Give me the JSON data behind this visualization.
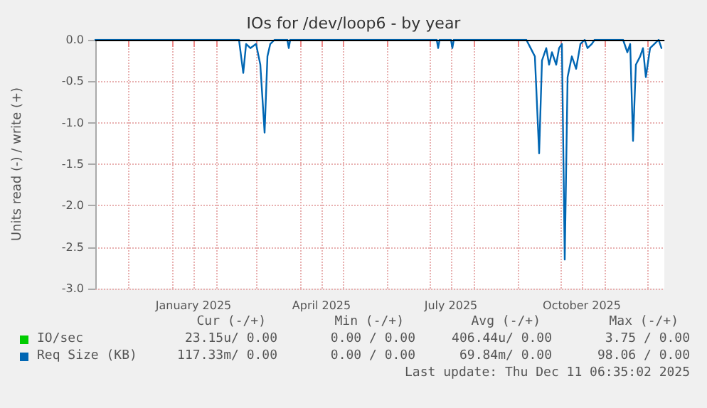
{
  "chart_data": {
    "type": "line",
    "title": "IOs for /dev/loop6 - by year",
    "ylabel": "Units read (-) / write (+)",
    "xlim": [
      "2024-11-08",
      "2025-12-13"
    ],
    "xticks": [
      {
        "value": "2024-12-01",
        "label": null
      },
      {
        "value": "2025-01-01",
        "label": null
      },
      {
        "value": "2025-01-16",
        "label": "January 2025"
      },
      {
        "value": "2025-02-01",
        "label": null
      },
      {
        "value": "2025-03-01",
        "label": null
      },
      {
        "value": "2025-04-01",
        "label": null
      },
      {
        "value": "2025-04-16",
        "label": "April 2025"
      },
      {
        "value": "2025-05-01",
        "label": null
      },
      {
        "value": "2025-06-01",
        "label": null
      },
      {
        "value": "2025-07-01",
        "label": null
      },
      {
        "value": "2025-07-16",
        "label": "July 2025"
      },
      {
        "value": "2025-08-01",
        "label": null
      },
      {
        "value": "2025-09-01",
        "label": null
      },
      {
        "value": "2025-10-01",
        "label": null
      },
      {
        "value": "2025-10-16",
        "label": "October 2025"
      },
      {
        "value": "2025-11-01",
        "label": null
      },
      {
        "value": "2025-12-01",
        "label": null
      }
    ],
    "ylim": [
      -3.0,
      0.0
    ],
    "yticks": [
      {
        "value": -3,
        "label": "-3.0"
      },
      {
        "value": -2.5,
        "label": "-2.5"
      },
      {
        "value": -2,
        "label": "-2.0"
      },
      {
        "value": -1.5,
        "label": "-1.5"
      },
      {
        "value": -1,
        "label": "-1.0"
      },
      {
        "value": -0.5,
        "label": "-0.5"
      },
      {
        "value": 0,
        "label": "0.0"
      }
    ],
    "grid": true,
    "legend": "bottom",
    "marker": "none",
    "line_style": "solid",
    "ref_lines": [
      {
        "axis": "y",
        "value": 0,
        "color": "#000000"
      }
    ],
    "series": [
      {
        "name": "IO/sec",
        "color": "#00cc00"
      },
      {
        "name": "Req Size (KB)",
        "color": "#0066b3",
        "x": [
          "2024-11-08",
          "2025-02-17",
          "2025-02-20",
          "2025-02-22",
          "2025-02-25",
          "2025-03-01",
          "2025-03-04",
          "2025-03-07",
          "2025-03-09",
          "2025-03-11",
          "2025-03-14",
          "2025-03-23",
          "2025-03-24",
          "2025-03-25",
          "2025-07-06",
          "2025-07-07",
          "2025-07-08",
          "2025-07-16",
          "2025-07-17",
          "2025-07-18",
          "2025-09-07",
          "2025-09-10",
          "2025-09-13",
          "2025-09-16",
          "2025-09-18",
          "2025-09-21",
          "2025-09-23",
          "2025-09-25",
          "2025-09-28",
          "2025-09-30",
          "2025-10-02",
          "2025-10-04",
          "2025-10-06",
          "2025-10-09",
          "2025-10-12",
          "2025-10-15",
          "2025-10-18",
          "2025-10-20",
          "2025-10-23",
          "2025-10-25",
          "2025-11-14",
          "2025-11-17",
          "2025-11-19",
          "2025-11-21",
          "2025-11-23",
          "2025-11-26",
          "2025-11-28",
          "2025-11-30",
          "2025-12-03",
          "2025-12-06",
          "2025-12-09",
          "2025-12-11"
        ],
        "values": [
          0,
          0,
          -0.4,
          -0.05,
          -0.1,
          -0.05,
          -0.3,
          -1.12,
          -0.2,
          -0.05,
          0,
          0,
          -0.1,
          0,
          0,
          -0.1,
          0,
          0,
          -0.1,
          0,
          0,
          -0.1,
          -0.2,
          -1.37,
          -0.25,
          -0.1,
          -0.3,
          -0.15,
          -0.3,
          -0.1,
          -0.05,
          -2.65,
          -0.45,
          -0.2,
          -0.35,
          -0.05,
          0,
          -0.1,
          -0.05,
          0,
          0,
          -0.15,
          -0.05,
          -1.22,
          -0.3,
          -0.2,
          -0.1,
          -0.45,
          -0.1,
          -0.05,
          0,
          -0.1
        ]
      }
    ],
    "annotations": [
      "Cur (-/+)",
      "Min (-/+)",
      "Avg (-/+)",
      "Max (-/+)",
      "23.15u/ 0.00",
      "0.00 / 0.00",
      "406.44u/ 0.00",
      "3.75 / 0.00",
      "117.33m/ 0.00",
      "0.00 / 0.00",
      "69.84m/ 0.00",
      "98.06 / 0.00",
      "Last update: Thu Dec 11 06:35:02 2025"
    ]
  }
}
